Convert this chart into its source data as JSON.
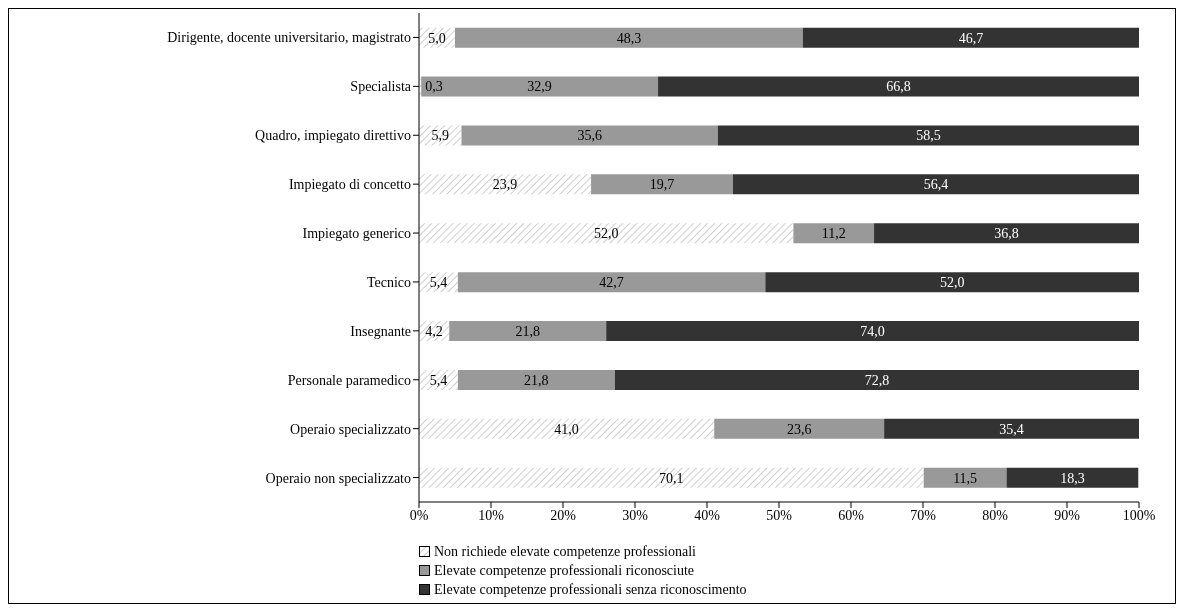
{
  "chart_data": {
    "type": "bar",
    "orientation": "horizontal",
    "stacked": true,
    "categories": [
      "Dirigente, docente universitario, magistrato",
      "Specialista",
      "Quadro, impiegato direttivo",
      "Impiegato di concetto",
      "Impiegato generico",
      "Tecnico",
      "Insegnante",
      "Personale paramedico",
      "Operaio specializzato",
      "Operaio non specializzato"
    ],
    "series": [
      {
        "name": "Non richiede elevate competenze professionali",
        "color": "#ffffff",
        "values": [
          5.0,
          0.3,
          5.9,
          23.9,
          52.0,
          5.4,
          4.2,
          5.4,
          41.0,
          70.1
        ],
        "value_labels": [
          "5,0",
          "0,3",
          "5,9",
          "23,9",
          "52,0",
          "5,4",
          "4,2",
          "5,4",
          "41,0",
          "70,1"
        ]
      },
      {
        "name": "Elevate competenze professionali riconosciute",
        "color": "#999999",
        "values": [
          48.3,
          32.9,
          35.6,
          19.7,
          11.2,
          42.7,
          21.8,
          21.8,
          23.6,
          11.5
        ],
        "value_labels": [
          "48,3",
          "32,9",
          "35,6",
          "19,7",
          "11,2",
          "42,7",
          "21,8",
          "21,8",
          "23,6",
          "11,5"
        ]
      },
      {
        "name": "Elevate competenze professionali senza riconoscimento",
        "color": "#333333",
        "values": [
          46.7,
          66.8,
          58.5,
          56.4,
          36.8,
          52.0,
          74.0,
          72.8,
          35.4,
          18.3
        ],
        "value_labels": [
          "46,7",
          "66,8",
          "58,5",
          "56,4",
          "36,8",
          "52,0",
          "74,0",
          "72,8",
          "35,4",
          "18,3"
        ]
      }
    ],
    "xlim": [
      0,
      100
    ],
    "xticks": [
      {
        "value": 0,
        "label": "0%"
      },
      {
        "value": 10,
        "label": "10%"
      },
      {
        "value": 20,
        "label": "20%"
      },
      {
        "value": 30,
        "label": "30%"
      },
      {
        "value": 40,
        "label": "40%"
      },
      {
        "value": 50,
        "label": "50%"
      },
      {
        "value": 60,
        "label": "60%"
      },
      {
        "value": 70,
        "label": "70%"
      },
      {
        "value": 80,
        "label": "80%"
      },
      {
        "value": 90,
        "label": "90%"
      },
      {
        "value": 100,
        "label": "100%"
      }
    ],
    "grid": false,
    "legend": "bottom"
  }
}
